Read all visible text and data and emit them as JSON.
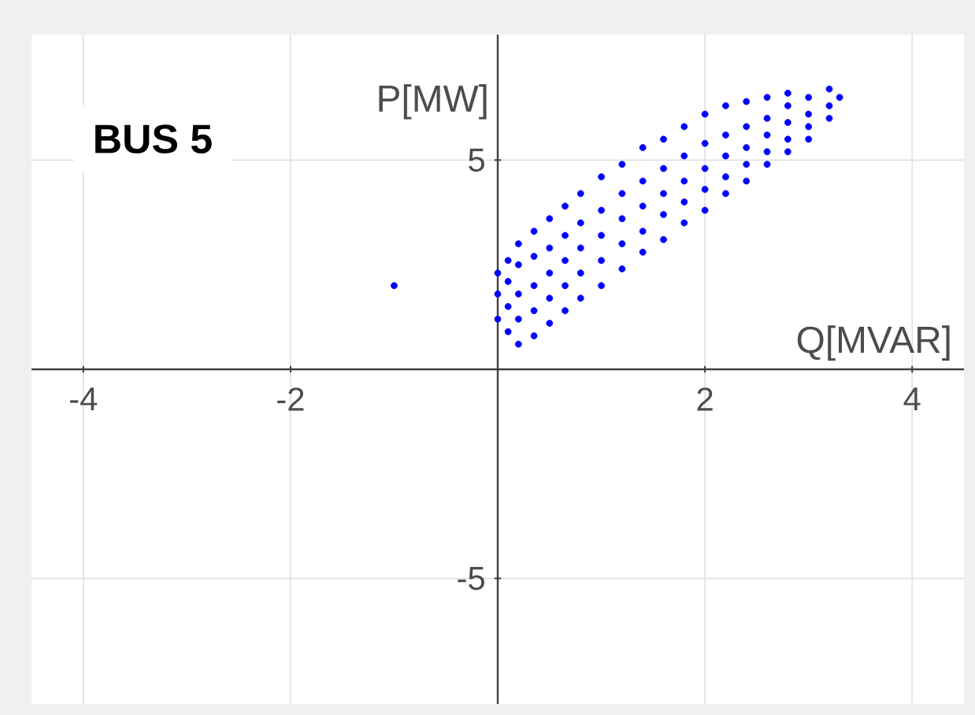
{
  "chart_data": {
    "type": "scatter",
    "title": "BUS 5",
    "xlabel": "Q[MVAR]",
    "ylabel": "P[MW]",
    "xlim": [
      -4.5,
      4.5
    ],
    "ylim": [
      -8,
      8
    ],
    "xticks": [
      -4,
      -2,
      2,
      4
    ],
    "yticks": [
      -5,
      5
    ],
    "grid": true,
    "series": [
      {
        "color": "#0000ff",
        "x": [
          -1.0,
          0.0,
          0.0,
          0.0,
          0.1,
          0.1,
          0.1,
          0.1,
          0.2,
          0.2,
          0.2,
          0.2,
          0.2,
          0.35,
          0.35,
          0.35,
          0.35,
          0.35,
          0.5,
          0.5,
          0.5,
          0.5,
          0.5,
          0.65,
          0.65,
          0.65,
          0.65,
          0.65,
          0.8,
          0.8,
          0.8,
          0.8,
          0.8,
          1.0,
          1.0,
          1.0,
          1.0,
          1.0,
          1.2,
          1.2,
          1.2,
          1.2,
          1.2,
          1.4,
          1.4,
          1.4,
          1.4,
          1.4,
          1.6,
          1.6,
          1.6,
          1.6,
          1.6,
          1.8,
          1.8,
          1.8,
          1.8,
          1.8,
          2.0,
          2.0,
          2.0,
          2.0,
          2.0,
          2.2,
          2.2,
          2.2,
          2.2,
          2.2,
          2.4,
          2.4,
          2.4,
          2.4,
          2.4,
          2.6,
          2.6,
          2.6,
          2.6,
          2.6,
          2.8,
          2.8,
          2.8,
          2.8,
          2.8,
          3.0,
          3.0,
          3.0,
          3.0,
          3.2,
          3.2,
          3.2,
          3.3
        ],
        "values": [
          2.0,
          1.2,
          1.8,
          2.3,
          0.9,
          1.5,
          2.1,
          2.6,
          0.6,
          1.2,
          1.8,
          2.5,
          3.0,
          0.8,
          1.4,
          2.0,
          2.7,
          3.3,
          1.1,
          1.7,
          2.3,
          2.9,
          3.6,
          1.4,
          2.0,
          2.6,
          3.2,
          3.9,
          1.7,
          2.3,
          2.9,
          3.5,
          4.2,
          2.0,
          2.6,
          3.2,
          3.8,
          4.6,
          2.4,
          3.0,
          3.6,
          4.2,
          4.9,
          2.8,
          3.3,
          3.9,
          4.5,
          5.3,
          3.1,
          3.7,
          4.2,
          4.8,
          5.5,
          3.5,
          4.0,
          4.5,
          5.1,
          5.8,
          3.8,
          4.3,
          4.8,
          5.4,
          6.1,
          4.2,
          4.6,
          5.1,
          5.6,
          6.3,
          4.5,
          4.9,
          5.3,
          5.8,
          6.4,
          4.9,
          5.2,
          5.6,
          6.0,
          6.5,
          5.2,
          5.5,
          5.9,
          6.3,
          6.6,
          5.5,
          5.8,
          6.1,
          6.5,
          6.0,
          6.3,
          6.7,
          6.5
        ]
      }
    ]
  }
}
